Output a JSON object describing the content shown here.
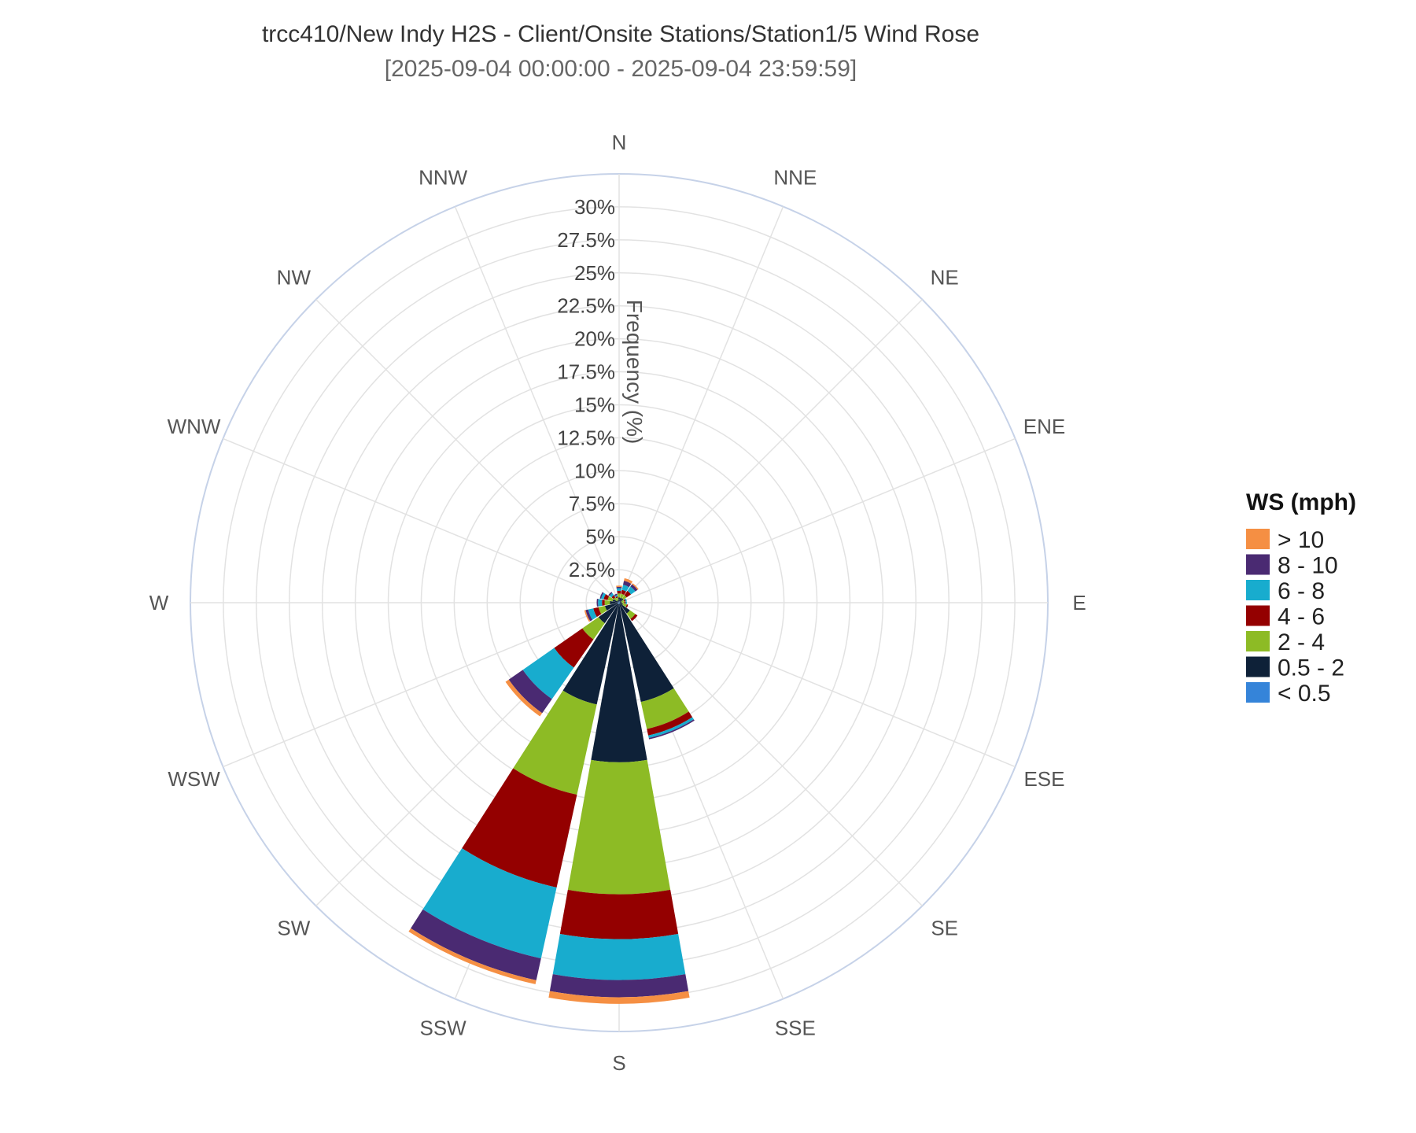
{
  "chart_data": {
    "type": "windrose",
    "title": "trcc410/New Indy H2S - Client/Onsite Stations/Station1/5 Wind Rose",
    "subtitle": "[2025-09-04 00:00:00 - 2025-09-04 23:59:59]",
    "radial_axis_label": "Frequency (%)",
    "radial_max": 32.5,
    "radial_ticks": [
      2.5,
      5,
      7.5,
      10,
      12.5,
      15,
      17.5,
      20,
      22.5,
      25,
      27.5,
      30
    ],
    "radial_tick_labels": [
      "2.5%",
      "5%",
      "7.5%",
      "10%",
      "12.5%",
      "15%",
      "17.5%",
      "20%",
      "22.5%",
      "25%",
      "27.5%",
      "30%"
    ],
    "directions": [
      "N",
      "NNE",
      "NE",
      "ENE",
      "E",
      "ESE",
      "SE",
      "SSE",
      "S",
      "SSW",
      "SW",
      "WSW",
      "W",
      "WNW",
      "NW",
      "NNW"
    ],
    "legend_title": "WS (mph)",
    "series": [
      {
        "name": "< 0.5",
        "color": "#3584D9",
        "values": [
          0.1,
          0.1,
          0.1,
          0,
          0,
          0,
          0,
          0.1,
          0.1,
          0.1,
          0.1,
          0.1,
          0.1,
          0.1,
          0,
          0
        ]
      },
      {
        "name": "0.5 - 2",
        "color": "#0E2138",
        "values": [
          0.3,
          0.3,
          0.3,
          0.2,
          0.2,
          0.3,
          1.0,
          7.6,
          12.0,
          7.8,
          1.8,
          1.0,
          0.6,
          0.4,
          0.2,
          0.2
        ]
      },
      {
        "name": "2 - 4",
        "color": "#8DBB25",
        "values": [
          0.3,
          0.3,
          0.3,
          0.2,
          0.2,
          0.3,
          0.5,
          2.1,
          10.0,
          7.0,
          1.5,
          0.5,
          0.4,
          0.4,
          0.3,
          0.2
        ]
      },
      {
        "name": "4 - 6",
        "color": "#940000",
        "values": [
          0.2,
          0.3,
          0.4,
          0.1,
          0.1,
          0.1,
          0.2,
          0.5,
          3.4,
          7.2,
          2.6,
          0.4,
          0.2,
          0.3,
          0.2,
          0.1
        ]
      },
      {
        "name": "6 - 8",
        "color": "#18ACCE",
        "values": [
          0.2,
          0.4,
          0.4,
          0.1,
          0.1,
          0.0,
          0.0,
          0.2,
          3.1,
          5.5,
          2.9,
          0.4,
          0.3,
          0.2,
          0.2,
          0.1
        ]
      },
      {
        "name": "8 - 10",
        "color": "#4A2A72",
        "values": [
          0.1,
          0.3,
          0.2,
          0.0,
          0.0,
          0.0,
          0.0,
          0.1,
          1.3,
          1.7,
          1.3,
          0.2,
          0.1,
          0.1,
          0.1,
          0.1
        ]
      },
      {
        "name": "> 10",
        "color": "#F58F43",
        "values": [
          0.1,
          0.2,
          0.1,
          0.0,
          0.0,
          0.0,
          0.0,
          0.0,
          0.5,
          0.3,
          0.3,
          0.1,
          0.0,
          0.0,
          0.0,
          0.0
        ]
      }
    ],
    "legend_placement": "right",
    "grid": true
  }
}
